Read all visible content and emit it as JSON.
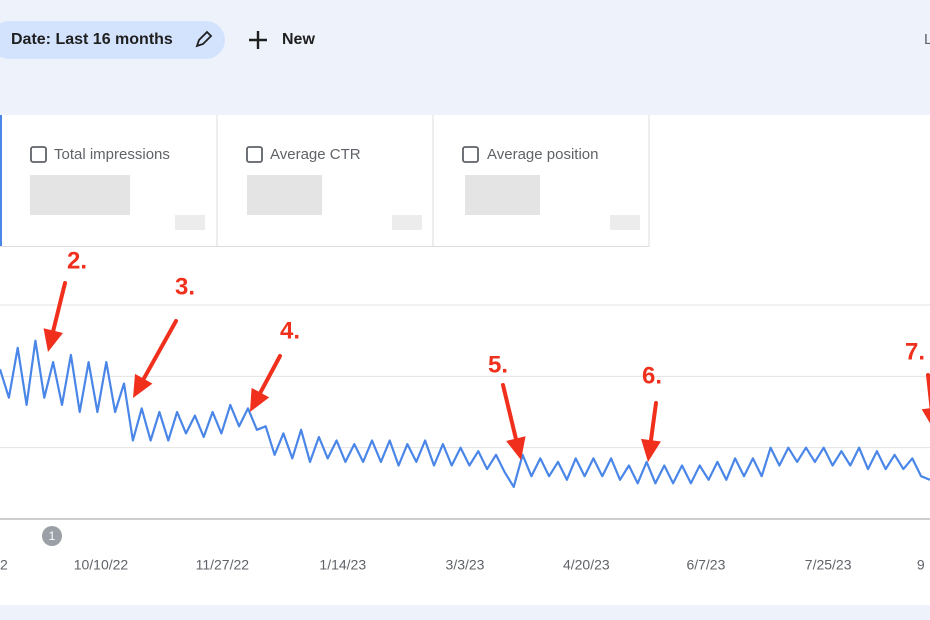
{
  "toolbar": {
    "date_filter": "Date: Last 16 months",
    "new_button": "New",
    "cut_label": "L"
  },
  "metrics": [
    "Total impressions",
    "Average CTR",
    "Average position"
  ],
  "chart_marker": "1",
  "annotations": [
    "2.",
    "3.",
    "4.",
    "5.",
    "6.",
    "7."
  ],
  "chart_data": {
    "type": "line",
    "color": "#4a86e8",
    "values": [
      2.1,
      1.7,
      2.4,
      1.6,
      2.5,
      1.7,
      2.2,
      1.6,
      2.3,
      1.5,
      2.2,
      1.5,
      2.2,
      1.5,
      1.9,
      1.1,
      1.55,
      1.1,
      1.5,
      1.1,
      1.5,
      1.2,
      1.45,
      1.15,
      1.5,
      1.2,
      1.6,
      1.3,
      1.55,
      1.25,
      1.3,
      0.9,
      1.2,
      0.85,
      1.25,
      0.8,
      1.15,
      0.85,
      1.1,
      0.8,
      1.05,
      0.8,
      1.1,
      0.8,
      1.1,
      0.75,
      1.05,
      0.8,
      1.1,
      0.75,
      1.05,
      0.75,
      1.0,
      0.75,
      0.95,
      0.7,
      0.9,
      0.65,
      0.45,
      0.9,
      0.6,
      0.85,
      0.6,
      0.8,
      0.55,
      0.85,
      0.6,
      0.85,
      0.6,
      0.85,
      0.55,
      0.75,
      0.5,
      0.8,
      0.5,
      0.75,
      0.5,
      0.75,
      0.5,
      0.75,
      0.55,
      0.8,
      0.55,
      0.85,
      0.6,
      0.85,
      0.6,
      1.0,
      0.75,
      1.0,
      0.8,
      1.0,
      0.8,
      1.0,
      0.75,
      0.95,
      0.75,
      1.0,
      0.7,
      0.95,
      0.7,
      0.9,
      0.7,
      0.85,
      0.6,
      0.55
    ],
    "ylim": [
      0,
      3
    ],
    "yticks": [
      0,
      1,
      2,
      3
    ],
    "grid": true,
    "xlim": [
      0,
      105
    ],
    "xticks": [
      {
        "value": 0,
        "label": "2"
      },
      {
        "value": 11.4,
        "label": "10/10/22"
      },
      {
        "value": 25.1,
        "label": "11/27/22"
      },
      {
        "value": 38.7,
        "label": "1/14/23"
      },
      {
        "value": 52.5,
        "label": "3/3/23"
      },
      {
        "value": 66.2,
        "label": "4/20/23"
      },
      {
        "value": 79.7,
        "label": "6/7/23"
      },
      {
        "value": 93.5,
        "label": "7/25/23"
      },
      {
        "value": 104.4,
        "label": "9"
      }
    ]
  }
}
